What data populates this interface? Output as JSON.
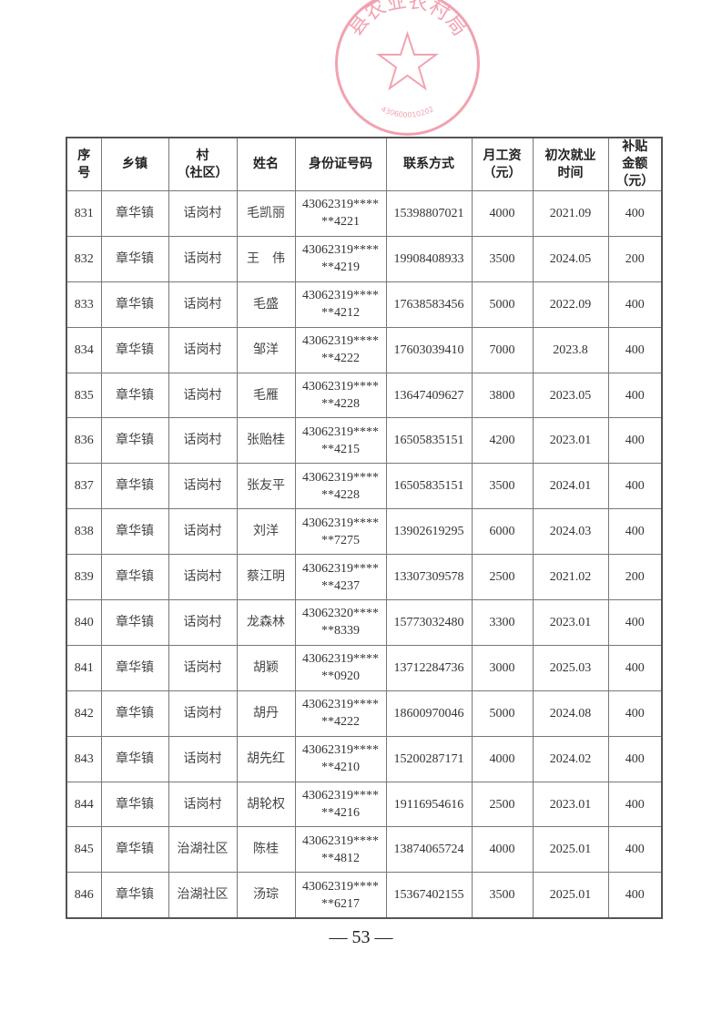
{
  "seal": {
    "text": "县农业农村局",
    "serial": "430600010202",
    "color": "#e8556e"
  },
  "table": {
    "headers": [
      "序\n号",
      "乡镇",
      "村\n（社区）",
      "姓名",
      "身份证号码",
      "联系方式",
      "月工资\n（元）",
      "初次就业\n时间",
      "补贴\n金额\n（元）"
    ],
    "rows": [
      [
        "831",
        "章华镇",
        "话岗村",
        "毛凯丽",
        "43062319****\n**4221",
        "15398807021",
        "4000",
        "2021.09",
        "400"
      ],
      [
        "832",
        "章华镇",
        "话岗村",
        "王　伟",
        "43062319****\n**4219",
        "19908408933",
        "3500",
        "2024.05",
        "200"
      ],
      [
        "833",
        "章华镇",
        "话岗村",
        "毛盛",
        "43062319****\n**4212",
        "17638583456",
        "5000",
        "2022.09",
        "400"
      ],
      [
        "834",
        "章华镇",
        "话岗村",
        "邹洋",
        "43062319****\n**4222",
        "17603039410",
        "7000",
        "2023.8",
        "400"
      ],
      [
        "835",
        "章华镇",
        "话岗村",
        "毛雁",
        "43062319****\n**4228",
        "13647409627",
        "3800",
        "2023.05",
        "400"
      ],
      [
        "836",
        "章华镇",
        "话岗村",
        "张贻桂",
        "43062319****\n**4215",
        "16505835151",
        "4200",
        "2023.01",
        "400"
      ],
      [
        "837",
        "章华镇",
        "话岗村",
        "张友平",
        "43062319****\n**4228",
        "16505835151",
        "3500",
        "2024.01",
        "400"
      ],
      [
        "838",
        "章华镇",
        "话岗村",
        "刘洋",
        "43062319****\n**7275",
        "13902619295",
        "6000",
        "2024.03",
        "400"
      ],
      [
        "839",
        "章华镇",
        "话岗村",
        "蔡江明",
        "43062319****\n**4237",
        "13307309578",
        "2500",
        "2021.02",
        "200"
      ],
      [
        "840",
        "章华镇",
        "话岗村",
        "龙森林",
        "43062320****\n**8339",
        "15773032480",
        "3300",
        "2023.01",
        "400"
      ],
      [
        "841",
        "章华镇",
        "话岗村",
        "胡颖",
        "43062319****\n**0920",
        "13712284736",
        "3000",
        "2025.03",
        "400"
      ],
      [
        "842",
        "章华镇",
        "话岗村",
        "胡丹",
        "43062319****\n**4222",
        "18600970046",
        "5000",
        "2024.08",
        "400"
      ],
      [
        "843",
        "章华镇",
        "话岗村",
        "胡先红",
        "43062319****\n**4210",
        "15200287171",
        "4000",
        "2024.02",
        "400"
      ],
      [
        "844",
        "章华镇",
        "话岗村",
        "胡轮权",
        "43062319****\n**4216",
        "19116954616",
        "2500",
        "2023.01",
        "400"
      ],
      [
        "845",
        "章华镇",
        "治湖社区",
        "陈桂",
        "43062319****\n**4812",
        "13874065724",
        "4000",
        "2025.01",
        "400"
      ],
      [
        "846",
        "章华镇",
        "治湖社区",
        "汤琮",
        "43062319****\n**6217",
        "15367402155",
        "3500",
        "2025.01",
        "400"
      ]
    ]
  },
  "footer": {
    "page_number": "— 53 —"
  }
}
